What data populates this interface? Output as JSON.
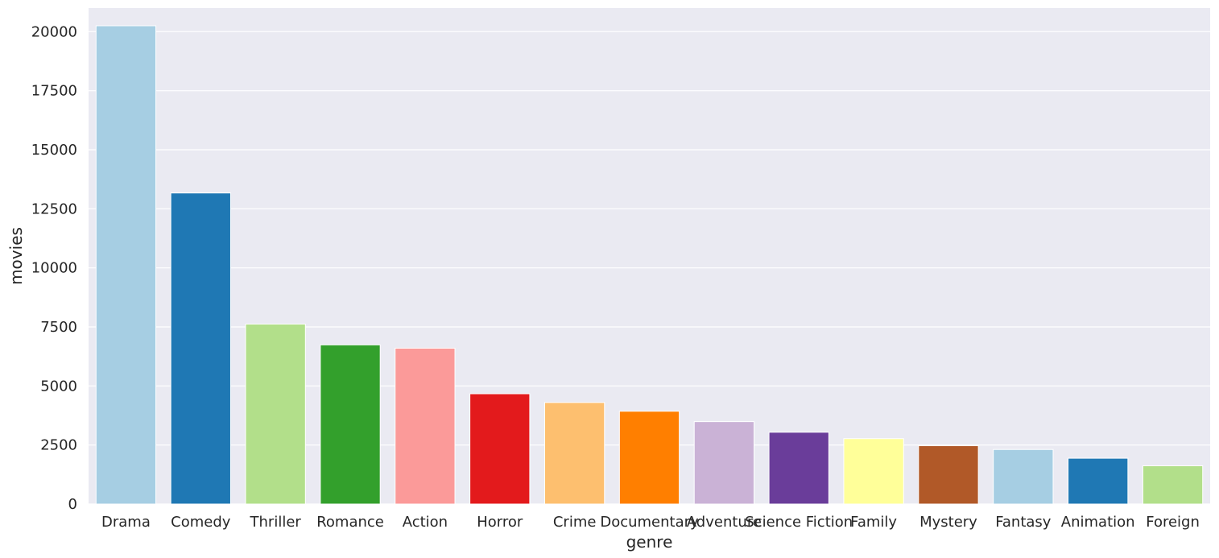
{
  "chart_data": {
    "type": "bar",
    "title": "",
    "xlabel": "genre",
    "ylabel": "movies",
    "ylim": [
      0,
      21000
    ],
    "yticks": [
      0,
      2500,
      5000,
      7500,
      10000,
      12500,
      15000,
      17500,
      20000
    ],
    "grid": true,
    "categories": [
      "Drama",
      "Comedy",
      "Thriller",
      "Romance",
      "Action",
      "Horror",
      "Crime",
      "Documentary",
      "Adventure",
      "Science Fiction",
      "Family",
      "Mystery",
      "Fantasy",
      "Animation",
      "Foreign"
    ],
    "values": [
      20250,
      13170,
      7620,
      6740,
      6600,
      4670,
      4300,
      3930,
      3490,
      3040,
      2770,
      2470,
      2310,
      1940,
      1620
    ],
    "colors": [
      "#a6cee3",
      "#1f78b4",
      "#b2df8a",
      "#33a02c",
      "#fb9a99",
      "#e31a1c",
      "#fdbf6f",
      "#ff7f00",
      "#cab2d6",
      "#6a3d9a",
      "#ffff99",
      "#b15928",
      "#a6cee3",
      "#1f78b4",
      "#b2df8a"
    ],
    "background_color": "#eaeaf2",
    "grid_color": "#ffffff"
  }
}
